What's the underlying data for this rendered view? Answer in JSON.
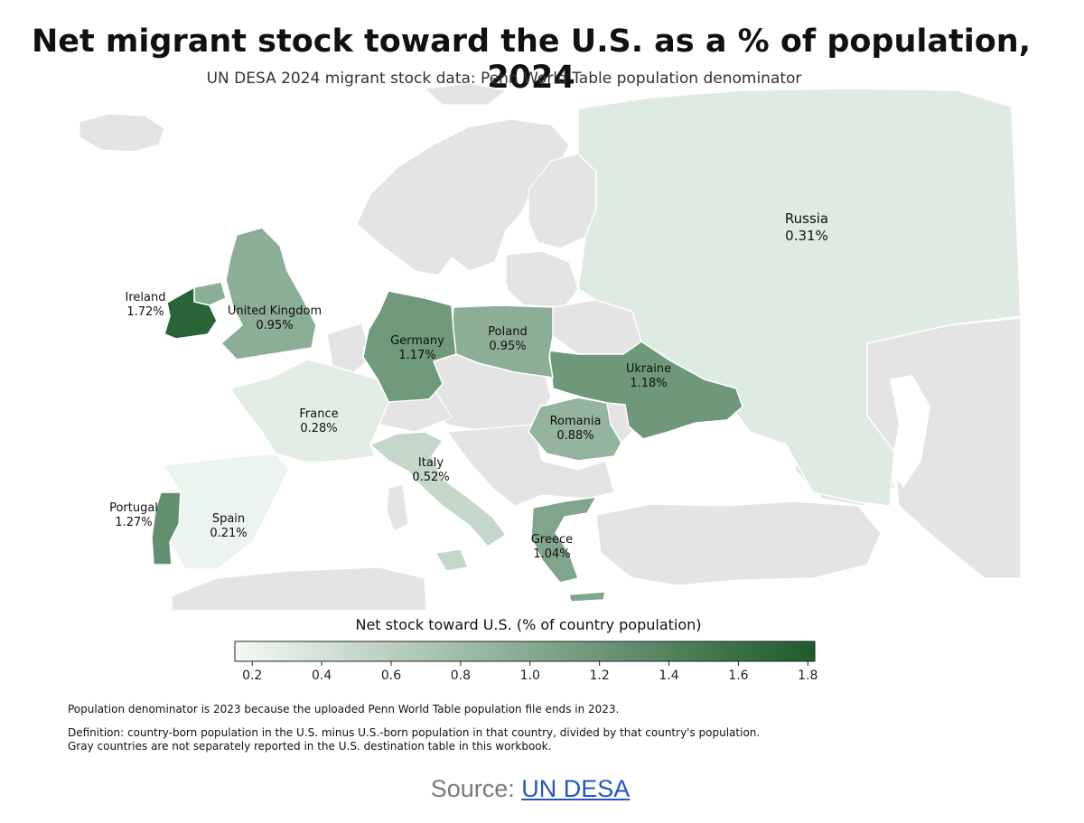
{
  "title": "Net migrant stock toward the U.S. as a % of population, 2024",
  "subtitle": "UN DESA 2024 migrant stock data; Penn World Table population denominator",
  "colorbar": {
    "title": "Net stock toward U.S. (% of country population)",
    "min": 0.15,
    "max": 1.82,
    "ticks": [
      "0.2",
      "0.4",
      "0.6",
      "0.8",
      "1.0",
      "1.2",
      "1.4",
      "1.6",
      "1.8"
    ],
    "low_color": "#f3faf5",
    "high_color": "#1d5b2c"
  },
  "map_data": {
    "countries": [
      {
        "name": "Ireland",
        "label": "1.72%",
        "value": 1.72
      },
      {
        "name": "United Kingdom",
        "label": "0.95%",
        "value": 0.95
      },
      {
        "name": "Germany",
        "label": "1.17%",
        "value": 1.17
      },
      {
        "name": "Poland",
        "label": "0.95%",
        "value": 0.95
      },
      {
        "name": "Ukraine",
        "label": "1.18%",
        "value": 1.18
      },
      {
        "name": "Russia",
        "label": "0.31%",
        "value": 0.31
      },
      {
        "name": "France",
        "label": "0.28%",
        "value": 0.28
      },
      {
        "name": "Romania",
        "label": "0.88%",
        "value": 0.88
      },
      {
        "name": "Italy",
        "label": "0.52%",
        "value": 0.52
      },
      {
        "name": "Portugal",
        "label": "1.27%",
        "value": 1.27
      },
      {
        "name": "Spain",
        "label": "0.21%",
        "value": 0.21
      },
      {
        "name": "Greece",
        "label": "1.04%",
        "value": 1.04
      }
    ],
    "unreported_color": "#e4e4e4"
  },
  "notes": [
    "Population denominator is 2023 because the uploaded Penn World Table population file ends in 2023.",
    "Definition: country-born population in the U.S. minus U.S.-born population in that country, divided by that country's population.",
    "Gray countries are not separately reported in the U.S. destination table in this workbook."
  ],
  "source": {
    "prefix": "Source: ",
    "link": "UN DESA"
  }
}
